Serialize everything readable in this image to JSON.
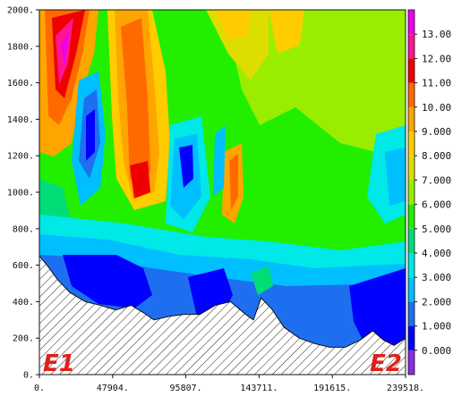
{
  "chart_data": {
    "type": "heatmap",
    "title": "",
    "xlabel": "",
    "ylabel": "",
    "xlim": [
      0,
      239518
    ],
    "ylim": [
      0,
      2000
    ],
    "x_ticks": [
      0,
      47904,
      95807,
      143711,
      191615,
      239518
    ],
    "x_tick_labels": [
      "0.",
      "47904.",
      "95807.",
      "143711.",
      "191615.",
      "239518."
    ],
    "y_ticks": [
      0,
      200,
      400,
      600,
      800,
      1000,
      1200,
      1400,
      1600,
      1800,
      2000
    ],
    "y_tick_labels": [
      "0.",
      "200.",
      "400.",
      "600.",
      "800.",
      "1000.",
      "1200.",
      "1400.",
      "1600.",
      "1800.",
      "2000."
    ],
    "colorbar": {
      "levels": [
        0,
        1,
        2,
        3,
        4,
        5,
        6,
        7,
        8,
        9,
        10,
        11,
        12,
        13
      ],
      "labels": [
        "0.000",
        "1.000",
        "2.000",
        "3.000",
        "4.000",
        "5.000",
        "6.000",
        "7.000",
        "8.000",
        "9.000",
        "10.00",
        "11.00",
        "12.00",
        "13.00"
      ],
      "colors": [
        "#8a2be2",
        "#0000ff",
        "#1e6ff0",
        "#00bfff",
        "#00e8e8",
        "#00dd77",
        "#22ee00",
        "#99ee00",
        "#dddd00",
        "#ffcc00",
        "#ffa500",
        "#ff6a00",
        "#ee0000",
        "#ff1493",
        "#ee00ee"
      ]
    },
    "terrain_profile": [
      [
        0,
        650
      ],
      [
        5000,
        600
      ],
      [
        12000,
        520
      ],
      [
        20000,
        450
      ],
      [
        30000,
        400
      ],
      [
        40000,
        380
      ],
      [
        50000,
        355
      ],
      [
        60000,
        380
      ],
      [
        68000,
        340
      ],
      [
        75000,
        300
      ],
      [
        85000,
        320
      ],
      [
        95000,
        330
      ],
      [
        105000,
        330
      ],
      [
        115000,
        380
      ],
      [
        125000,
        400
      ],
      [
        135000,
        330
      ],
      [
        140000,
        300
      ],
      [
        145000,
        420
      ],
      [
        152000,
        360
      ],
      [
        160000,
        260
      ],
      [
        170000,
        200
      ],
      [
        180000,
        170
      ],
      [
        190000,
        150
      ],
      [
        200000,
        150
      ],
      [
        210000,
        190
      ],
      [
        218000,
        240
      ],
      [
        225000,
        190
      ],
      [
        232000,
        160
      ],
      [
        239518,
        200
      ]
    ],
    "annotations": [
      {
        "text": "E1",
        "x": 0,
        "y": 0
      },
      {
        "text": "E2",
        "x": 239518,
        "y": 0
      }
    ]
  }
}
